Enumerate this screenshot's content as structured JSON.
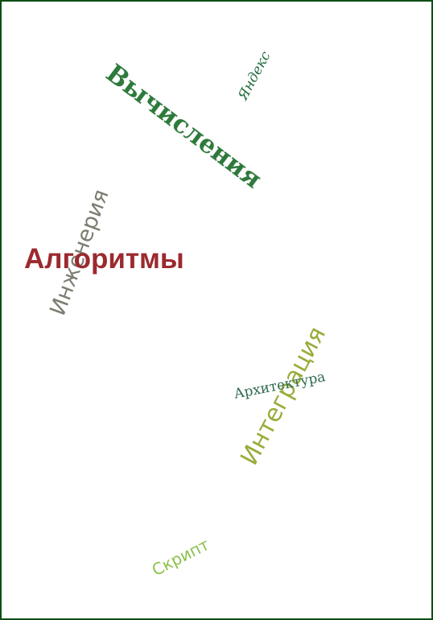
{
  "word_cloud": {
    "words": [
      {
        "id": "vychisleniya",
        "text": "Вычисления",
        "color": "#2e7a3c"
      },
      {
        "id": "yandex",
        "text": "Яндекс",
        "color": "#1f6b3a"
      },
      {
        "id": "inzheneriya",
        "text": "Инженерия",
        "color": "#7b7d70"
      },
      {
        "id": "algoritmy",
        "text": "Алгоритмы",
        "color": "#9b2a2f"
      },
      {
        "id": "integratsiya",
        "text": "Интеграция",
        "color": "#9aac3a"
      },
      {
        "id": "arkhitektura",
        "text": "Архитектура",
        "color": "#2f6b4f"
      },
      {
        "id": "skript",
        "text": "Скрипт",
        "color": "#8cc04a"
      }
    ],
    "frame_color": "#0f4d14"
  }
}
